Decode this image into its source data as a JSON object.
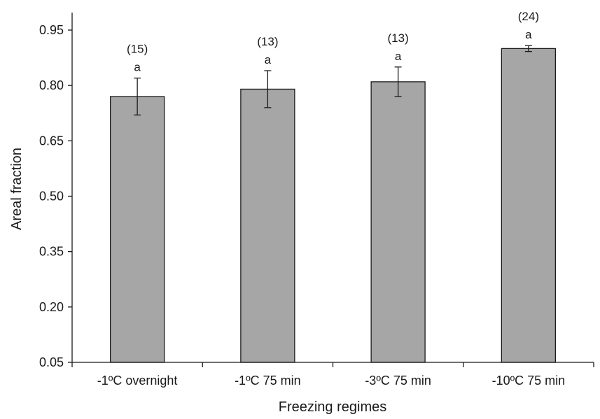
{
  "chart_data": {
    "type": "bar",
    "xlabel": "Freezing regimes",
    "ylabel": "Areal fraction",
    "ylim": [
      0.05,
      1.0
    ],
    "yticks": [
      "0.05",
      "0.20",
      "0.35",
      "0.50",
      "0.65",
      "0.80",
      "0.95"
    ],
    "categories": [
      "-1ºC overnight",
      "-1ºC 75 min",
      "-3ºC 75 min",
      "-10ºC 75 min"
    ],
    "values": [
      0.77,
      0.79,
      0.81,
      0.9
    ],
    "errors": [
      0.05,
      0.05,
      0.04,
      0.008
    ],
    "letters": [
      "a",
      "a",
      "a",
      "a"
    ],
    "n_labels": [
      "(15)",
      "(13)",
      "(13)",
      "(24)"
    ],
    "bar_color": "#a6a6a6",
    "grid": false
  }
}
